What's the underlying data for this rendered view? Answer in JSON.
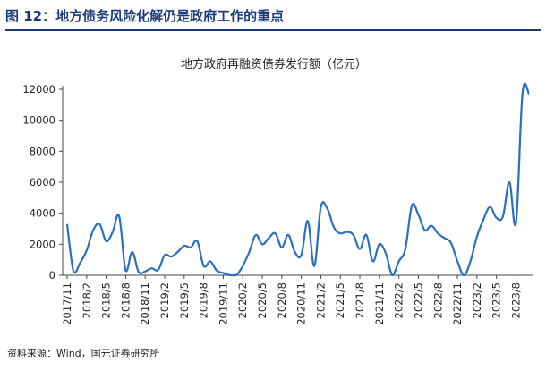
{
  "figure_title": "图 12：地方债务风险化解仍是政府工作的重点",
  "source": "资料来源：Wind，国元证券研究所",
  "colors": {
    "line": "#2a6fc0",
    "title": "#1d3a7a",
    "axis": "#444444"
  },
  "chart_data": {
    "type": "line",
    "title": "地方政府再融资债券发行额（亿元）",
    "xlabel": "",
    "ylabel": "",
    "ylim": [
      0,
      12000
    ],
    "yticks": [
      0,
      2000,
      4000,
      6000,
      8000,
      10000,
      12000
    ],
    "ytick_labels": [
      "0",
      "2000",
      "4000",
      "6000",
      "8000",
      "10000",
      "12000"
    ],
    "xtick_labels": [
      "2017/11",
      "2018/2",
      "2018/5",
      "2018/8",
      "2018/11",
      "2019/2",
      "2019/5",
      "2019/8",
      "2019/11",
      "2020/2",
      "2020/5",
      "2020/8",
      "2020/11",
      "2021/2",
      "2021/5",
      "2021/8",
      "2021/11",
      "2022/2",
      "2022/5",
      "2022/8",
      "2022/11",
      "2023/2",
      "2023/5",
      "2023/8"
    ],
    "grid": false,
    "legend": "none",
    "series": [
      {
        "x": [
          "2017/11",
          "2017/12",
          "2018/1",
          "2018/2",
          "2018/3",
          "2018/4",
          "2018/5",
          "2018/6",
          "2018/7",
          "2018/8",
          "2018/9",
          "2018/10",
          "2018/11",
          "2018/12",
          "2019/1",
          "2019/2",
          "2019/3",
          "2019/4",
          "2019/5",
          "2019/6",
          "2019/7",
          "2019/8",
          "2019/9",
          "2019/10",
          "2019/11",
          "2019/12",
          "2020/1",
          "2020/2",
          "2020/3",
          "2020/4",
          "2020/5",
          "2020/6",
          "2020/7",
          "2020/8",
          "2020/9",
          "2020/10",
          "2020/11",
          "2020/12",
          "2021/1",
          "2021/2",
          "2021/3",
          "2021/4",
          "2021/5",
          "2021/6",
          "2021/7",
          "2021/8",
          "2021/9",
          "2021/10",
          "2021/11",
          "2021/12",
          "2022/1",
          "2022/2",
          "2022/3",
          "2022/4",
          "2022/5",
          "2022/6",
          "2022/7",
          "2022/8",
          "2022/9",
          "2022/10",
          "2022/11",
          "2022/12",
          "2023/1",
          "2023/2",
          "2023/3",
          "2023/4",
          "2023/5",
          "2023/6",
          "2023/7",
          "2023/8",
          "2023/9",
          "2023/10"
        ],
        "values": [
          3300,
          200,
          800,
          1600,
          2900,
          3300,
          2200,
          2800,
          3800,
          300,
          1500,
          200,
          250,
          450,
          350,
          1300,
          1200,
          1500,
          1900,
          1800,
          2200,
          600,
          900,
          300,
          150,
          0,
          0,
          600,
          1500,
          2600,
          2000,
          2400,
          2700,
          1800,
          2600,
          1500,
          1300,
          3500,
          600,
          4400,
          4300,
          3100,
          2700,
          2800,
          2600,
          1700,
          2600,
          900,
          2000,
          1400,
          0,
          900,
          1700,
          4500,
          3900,
          2900,
          3200,
          2700,
          2400,
          2100,
          900,
          0,
          900,
          2500,
          3600,
          4400,
          3700,
          3800,
          6000,
          3400,
          11700,
          11700
        ]
      }
    ]
  }
}
